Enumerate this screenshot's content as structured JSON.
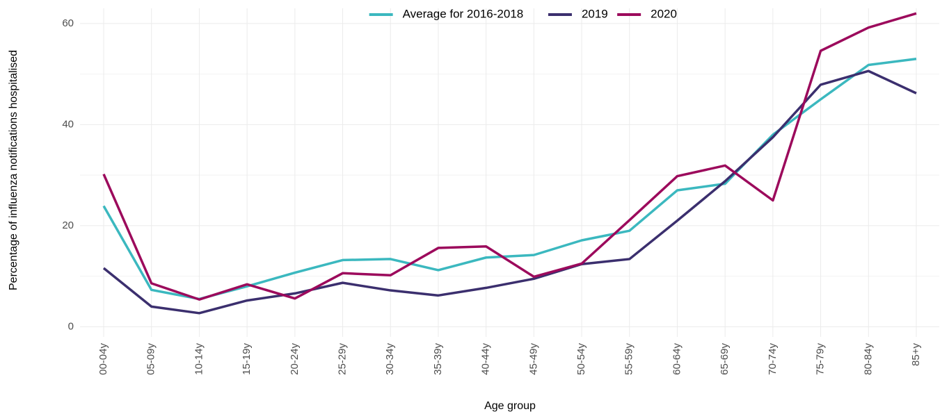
{
  "chart_data": {
    "type": "line",
    "x_label": "Age group",
    "y_label": "Percentage of influenza notifications hospitalised",
    "categories": [
      "00-04y",
      "05-09y",
      "10-14y",
      "15-19y",
      "20-24y",
      "25-29y",
      "30-34y",
      "35-39y",
      "40-44y",
      "45-49y",
      "50-54y",
      "55-59y",
      "60-64y",
      "65-69y",
      "70-74y",
      "75-79y",
      "80-84y",
      "85+y"
    ],
    "series": [
      {
        "name": "Average for 2016-2018",
        "color": "#3bb8bf",
        "values": [
          23.9,
          7.3,
          5.5,
          8,
          10.7,
          13.2,
          13.4,
          11.2,
          13.7,
          14.2,
          17.1,
          19,
          27,
          28.3,
          38,
          45,
          51.8,
          53
        ]
      },
      {
        "name": "2019",
        "color": "#3b2f6e",
        "values": [
          11.6,
          4,
          2.7,
          5.2,
          6.6,
          8.7,
          7.2,
          6.2,
          7.7,
          9.5,
          12.4,
          13.4,
          21,
          28.8,
          37.5,
          47.9,
          50.6,
          46.2
        ]
      },
      {
        "name": "2020",
        "color": "#9c0a5c",
        "values": [
          30.2,
          8.6,
          5.4,
          8.4,
          5.6,
          10.6,
          10.2,
          15.6,
          15.9,
          9.9,
          12.5,
          21.1,
          29.8,
          31.9,
          25,
          54.6,
          59.2,
          62
        ]
      }
    ],
    "ylim": [
      -2,
      63
    ],
    "yticks": [
      0,
      20,
      40,
      60
    ],
    "y_minor_grid": [
      10,
      30,
      50
    ],
    "grid": true,
    "legend_position": "top"
  }
}
